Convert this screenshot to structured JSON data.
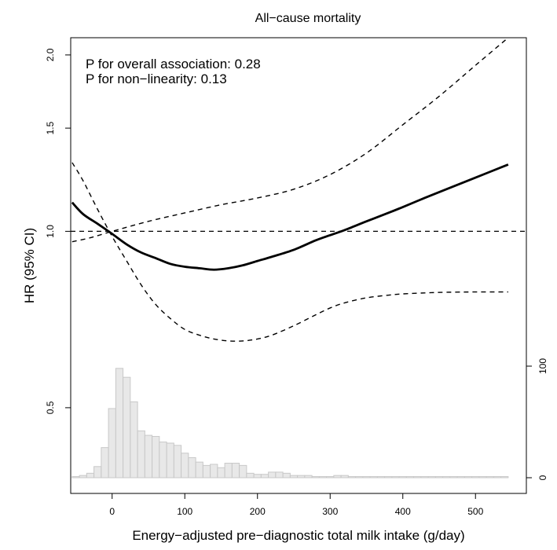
{
  "chart_data": {
    "type": "line",
    "title": "All−cause mortality",
    "xlabel": "Energy−adjusted pre−diagnostic total milk intake (g/day)",
    "ylabel": "HR (95% CI)",
    "annotations": [
      "P for overall association: 0.28",
      "P for non−linearity: 0.13"
    ],
    "x_axis": {
      "range": [
        -57,
        570
      ],
      "ticks": [
        0,
        100,
        200,
        300,
        400,
        500
      ]
    },
    "y_axis": {
      "scale": "log",
      "range": [
        0.357,
        2.14
      ],
      "ticks": [
        0.5,
        1.0,
        1.5,
        2.0
      ],
      "tick_labels": [
        "0.5",
        "1.0",
        "1.5",
        "2.0"
      ]
    },
    "reference_line": {
      "y": 1.0,
      "style": "dashed"
    },
    "series": [
      {
        "role": "estimate",
        "style": "solid",
        "x": [
          -55,
          -40,
          -20,
          0,
          20,
          40,
          60,
          80,
          100,
          120,
          140,
          160,
          180,
          200,
          220,
          250,
          280,
          300,
          320,
          350,
          380,
          400,
          430,
          460,
          500,
          545
        ],
        "y": [
          1.12,
          1.07,
          1.03,
          0.99,
          0.95,
          0.92,
          0.9,
          0.88,
          0.87,
          0.865,
          0.86,
          0.865,
          0.875,
          0.89,
          0.905,
          0.93,
          0.965,
          0.985,
          1.005,
          1.04,
          1.075,
          1.1,
          1.14,
          1.18,
          1.235,
          1.3
        ]
      },
      {
        "role": "upper_ci",
        "style": "dashed",
        "x": [
          -55,
          -30,
          0,
          50,
          100,
          150,
          200,
          250,
          300,
          350,
          400,
          450,
          500,
          545
        ],
        "y": [
          0.96,
          0.975,
          1.0,
          1.04,
          1.075,
          1.11,
          1.14,
          1.18,
          1.25,
          1.36,
          1.52,
          1.7,
          1.92,
          2.14
        ]
      },
      {
        "role": "lower_ci",
        "style": "dashed",
        "x": [
          -55,
          -40,
          -20,
          0,
          20,
          40,
          60,
          80,
          100,
          120,
          140,
          160,
          180,
          200,
          220,
          250,
          280,
          300,
          320,
          350,
          380,
          400,
          430,
          460,
          500,
          545
        ],
        "y": [
          1.31,
          1.22,
          1.09,
          0.98,
          0.89,
          0.81,
          0.75,
          0.71,
          0.68,
          0.665,
          0.655,
          0.65,
          0.65,
          0.655,
          0.665,
          0.69,
          0.72,
          0.74,
          0.755,
          0.77,
          0.778,
          0.782,
          0.785,
          0.787,
          0.788,
          0.788
        ]
      }
    ],
    "histogram": {
      "axis_ticks": [
        0,
        100
      ],
      "bin_width": 10,
      "bin_starts": [
        -55,
        -45,
        -35,
        -25,
        -15,
        -5,
        5,
        15,
        25,
        35,
        45,
        55,
        65,
        75,
        85,
        95,
        105,
        115,
        125,
        135,
        145,
        155,
        165,
        175,
        185,
        195,
        205,
        215,
        225,
        235,
        245,
        255,
        265,
        275,
        285,
        295,
        305,
        315,
        325,
        335,
        345,
        355,
        365,
        375,
        385,
        395,
        405,
        415,
        425,
        435,
        445,
        455,
        465,
        475,
        485,
        495,
        505,
        515,
        525,
        535
      ],
      "counts": [
        1,
        2,
        4,
        10,
        27,
        62,
        98,
        90,
        68,
        42,
        38,
        37,
        32,
        31,
        29,
        22,
        18,
        14,
        11,
        12,
        9,
        13,
        13,
        11,
        4,
        3,
        3,
        5,
        5,
        4,
        2,
        2,
        2,
        1,
        1,
        1,
        2,
        2,
        1,
        1,
        1,
        1,
        1,
        1,
        1,
        1,
        1,
        1,
        1,
        1,
        1,
        1,
        1,
        1,
        1,
        1,
        1,
        1,
        1,
        1
      ]
    },
    "grid": false,
    "legend": "none"
  }
}
